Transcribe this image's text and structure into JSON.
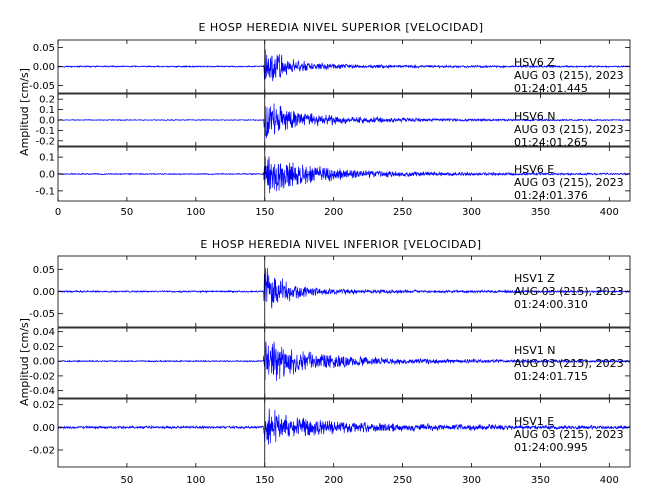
{
  "chart_data": [
    {
      "type": "line",
      "title": "E HOSP HEREDIA NIVEL SUPERIOR [VELOCIDAD]",
      "ylabel": "Amplitud [cm/s]",
      "xlabel": "",
      "xlim": [
        0,
        415
      ],
      "x_ticks": [
        0,
        50,
        100,
        150,
        200,
        250,
        300,
        350,
        400
      ],
      "x_tick_labels": [
        "0",
        "50",
        "100",
        "150",
        "200",
        "250",
        "300",
        "350",
        "400"
      ],
      "marker_x": 150,
      "line_color": "#0000ff",
      "panels": [
        {
          "station": "HSV6",
          "component": "Z",
          "date": "AUG 03 (215), 2023",
          "time": "01:24:01.445",
          "ylim": [
            -0.07,
            0.07
          ],
          "y_ticks": [
            0.05,
            0.0,
            -0.05
          ],
          "y_tick_labels": [
            "0.05",
            "0.00",
            "-0.05"
          ],
          "series": [
            {
              "t": [
                0,
                149,
                150,
                152,
                155,
                160,
                170,
                185,
                200,
                230,
                260,
                300,
                415
              ],
              "amp": [
                0.002,
                0.002,
                0.065,
                0.055,
                0.045,
                0.035,
                0.02,
                0.012,
                0.008,
                0.005,
                0.004,
                0.003,
                0.002
              ]
            }
          ]
        },
        {
          "station": "HSV6",
          "component": "N",
          "date": "AUG 03 (215), 2023",
          "time": "01:24:01.265",
          "ylim": [
            -0.25,
            0.25
          ],
          "y_ticks": [
            0.2,
            0.1,
            0.0,
            -0.1,
            -0.2
          ],
          "y_tick_labels": [
            "0.2",
            "0.1",
            "0.0",
            "-0.1",
            "-0.2"
          ],
          "series": [
            {
              "t": [
                0,
                149,
                150,
                152,
                157,
                165,
                175,
                190,
                210,
                240,
                280,
                330,
                415
              ],
              "amp": [
                0.005,
                0.005,
                0.18,
                0.2,
                0.17,
                0.13,
                0.09,
                0.06,
                0.04,
                0.025,
                0.015,
                0.01,
                0.006
              ]
            }
          ]
        },
        {
          "station": "HSV6",
          "component": "E",
          "date": "AUG 03 (215), 2023",
          "time": "01:24:01.376",
          "ylim": [
            -0.16,
            0.16
          ],
          "y_ticks": [
            0.1,
            0.0,
            -0.1
          ],
          "y_tick_labels": [
            "0.1",
            "0.0",
            "-0.1"
          ],
          "series": [
            {
              "t": [
                0,
                149,
                150,
                153,
                158,
                165,
                175,
                190,
                210,
                240,
                280,
                330,
                415
              ],
              "amp": [
                0.004,
                0.004,
                0.13,
                0.14,
                0.12,
                0.1,
                0.075,
                0.05,
                0.03,
                0.02,
                0.012,
                0.008,
                0.005
              ]
            }
          ]
        }
      ]
    },
    {
      "type": "line",
      "title": "E HOSP HEREDIA NIVEL INFERIOR [VELOCIDAD]",
      "ylabel": "Amplitud [cm/s]",
      "xlabel": "",
      "xlim": [
        0,
        415
      ],
      "x_ticks": [
        50,
        100,
        150,
        200,
        250,
        300,
        350,
        400
      ],
      "x_tick_labels": [
        "50",
        "100",
        "150",
        "200",
        "250",
        "300",
        "350",
        "400"
      ],
      "marker_x": 150,
      "line_color": "#0000ff",
      "panels": [
        {
          "station": "HSV1",
          "component": "Z",
          "date": "AUG 03 (215), 2023",
          "time": "01:24:00.310",
          "ylim": [
            -0.08,
            0.08
          ],
          "y_ticks": [
            0.05,
            0.0,
            -0.05
          ],
          "y_tick_labels": [
            "0.05",
            "0.00",
            "-0.05"
          ],
          "series": [
            {
              "t": [
                0,
                149,
                150,
                152,
                156,
                162,
                172,
                185,
                200,
                230,
                270,
                320,
                415
              ],
              "amp": [
                0.002,
                0.002,
                0.07,
                0.06,
                0.045,
                0.032,
                0.018,
                0.011,
                0.007,
                0.005,
                0.003,
                0.003,
                0.002
              ]
            }
          ]
        },
        {
          "station": "HSV1",
          "component": "N",
          "date": "AUG 03 (215), 2023",
          "time": "01:24:01.715",
          "ylim": [
            -0.05,
            0.045
          ],
          "y_ticks": [
            0.04,
            0.02,
            0.0,
            -0.02,
            -0.04
          ],
          "y_tick_labels": [
            "0.04",
            "0.02",
            "0.00",
            "-0.02",
            "-0.04"
          ],
          "series": [
            {
              "t": [
                0,
                149,
                150,
                153,
                158,
                166,
                178,
                195,
                215,
                245,
                285,
                340,
                415
              ],
              "amp": [
                0.001,
                0.001,
                0.035,
                0.04,
                0.032,
                0.022,
                0.015,
                0.011,
                0.008,
                0.005,
                0.003,
                0.002,
                0.0015
              ]
            }
          ]
        },
        {
          "station": "HSV1",
          "component": "E",
          "date": "AUG 03 (215), 2023",
          "time": "01:24:00.995",
          "ylim": [
            -0.035,
            0.025
          ],
          "y_ticks": [
            0.02,
            0.0,
            -0.02
          ],
          "y_tick_labels": [
            "0.02",
            "0.00",
            "-0.02"
          ],
          "series": [
            {
              "t": [
                0,
                149,
                150,
                153,
                158,
                166,
                178,
                195,
                215,
                245,
                285,
                340,
                415
              ],
              "amp": [
                0.0012,
                0.0012,
                0.022,
                0.02,
                0.016,
                0.012,
                0.009,
                0.007,
                0.005,
                0.004,
                0.003,
                0.002,
                0.0015
              ]
            }
          ]
        }
      ]
    }
  ]
}
